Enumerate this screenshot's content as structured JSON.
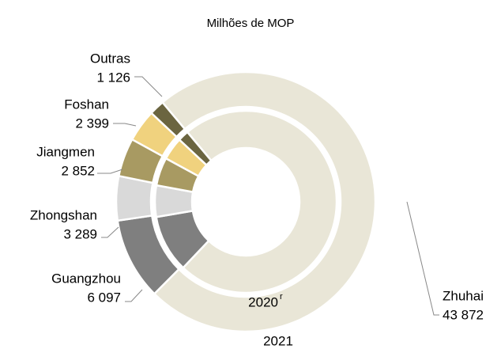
{
  "chart_data": {
    "type": "nested-donut",
    "subtitle": "Milhões de MOP",
    "categories": [
      "Zhuhai",
      "Guangzhou",
      "Zhongshan",
      "Jiangmen",
      "Foshan",
      "Outras"
    ],
    "colors": [
      "#e9e6d7",
      "#7f7f7f",
      "#d9d9d9",
      "#a89a62",
      "#f0d27e",
      "#6b6540"
    ],
    "series": [
      {
        "name": "2020",
        "name_superscript": "r",
        "ring": "inner",
        "values": [
          38000,
          5300,
          2900,
          2600,
          2100,
          1000
        ]
      },
      {
        "name": "2021",
        "ring": "outer",
        "values": [
          43872,
          6097,
          3289,
          2852,
          2399,
          1126
        ],
        "value_labels": [
          "43 872",
          "6 097",
          "3 289",
          "2 852",
          "2 399",
          "1 126"
        ]
      }
    ]
  }
}
